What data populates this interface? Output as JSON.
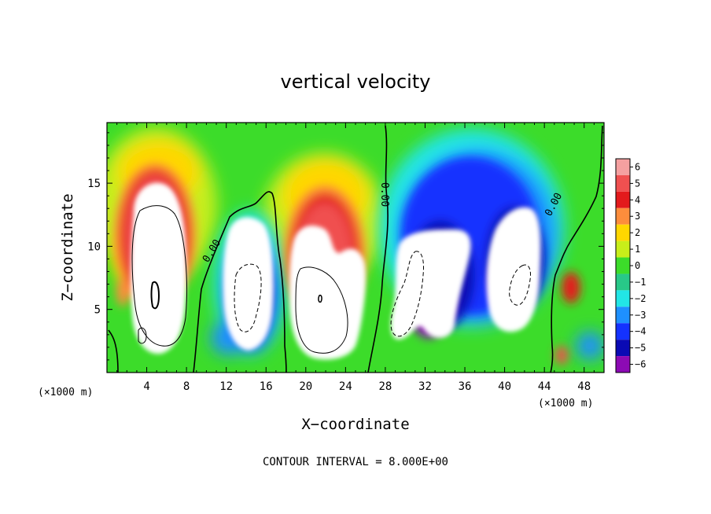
{
  "chart_data": {
    "type": "heatmap",
    "title": "vertical velocity",
    "xlabel": "X−coordinate",
    "ylabel": "Z−coordinate",
    "x_unit_left": "(×1000 m)",
    "x_unit_right": "(×1000 m)",
    "xlim": [
      0,
      50
    ],
    "ylim": [
      0,
      19.8
    ],
    "x_ticks": [
      4,
      8,
      12,
      16,
      20,
      24,
      28,
      32,
      36,
      40,
      44,
      48
    ],
    "x_tick_labels": [
      "4",
      "8",
      "12",
      "16",
      "20",
      "24",
      "28",
      "32",
      "36",
      "40",
      "44",
      "48"
    ],
    "y_ticks": [
      5,
      10,
      15
    ],
    "y_tick_labels": [
      "5",
      "10",
      "15"
    ],
    "footer": "CONTOUR INTERVAL = 8.000E+00",
    "colorbar": {
      "levels": [
        6,
        5,
        4,
        3,
        2,
        1,
        0,
        -1,
        -2,
        -3,
        -4,
        -5,
        -6
      ],
      "labels": [
        "6",
        "5",
        "4",
        "3",
        "2",
        "1",
        "0",
        "−1",
        "−2",
        "−3",
        "−4",
        "−5",
        "−6"
      ],
      "colors": [
        "#f5a0a0",
        "#f05050",
        "#e31a1c",
        "#fd8d3c",
        "#ffd700",
        "#c8ee1a",
        "#3cdc2a",
        "#28c888",
        "#22e6e6",
        "#1e90ff",
        "#1432ff",
        "#0a0ab4",
        "#8c0ab4"
      ]
    },
    "contour_labels": [
      {
        "text": "0.00",
        "x": 10.8,
        "y": 9.5,
        "angle": -58
      },
      {
        "text": "0.00",
        "x": 27.6,
        "y": 14.1,
        "angle": 90
      },
      {
        "text": "0.00",
        "x": 45.2,
        "y": 13.2,
        "angle": -62
      }
    ],
    "cells": [
      {
        "name": "updraft-cell-1",
        "sign": "positive",
        "x_center": 5.0,
        "z_center": 8.0,
        "x_halfwidth": 3.4,
        "z_halfwidth": 8.6
      },
      {
        "name": "downdraft-cell-1",
        "sign": "negative",
        "x_center": 14.0,
        "z_center": 5.6,
        "x_halfwidth": 2.6,
        "z_halfwidth": 6.8
      },
      {
        "name": "updraft-cell-2",
        "sign": "positive",
        "x_center": 21.7,
        "z_center": 6.8,
        "x_halfwidth": 3.7,
        "z_halfwidth": 8.2
      },
      {
        "name": "downdraft-cell-2",
        "sign": "negative",
        "x_center": 34.0,
        "z_center": 7.5,
        "x_halfwidth": 5.2,
        "z_halfwidth": 8.8
      },
      {
        "name": "downdraft-cell-3",
        "sign": "negative",
        "x_center": 41.0,
        "z_center": 8.0,
        "x_halfwidth": 3.5,
        "z_halfwidth": 8.0
      },
      {
        "name": "updraft-cell-3",
        "sign": "positive",
        "x_center": 46.5,
        "z_center": 6.7,
        "x_halfwidth": 1.0,
        "z_halfwidth": 2.2
      }
    ]
  }
}
